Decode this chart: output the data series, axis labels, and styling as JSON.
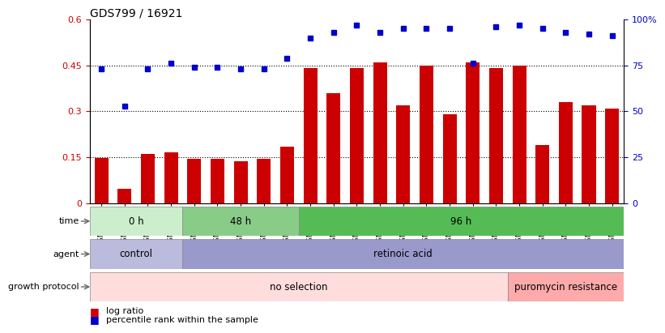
{
  "title": "GDS799 / 16921",
  "samples": [
    "GSM25978",
    "GSM25979",
    "GSM26006",
    "GSM26007",
    "GSM26008",
    "GSM26009",
    "GSM26010",
    "GSM26011",
    "GSM26012",
    "GSM26013",
    "GSM26014",
    "GSM26015",
    "GSM26016",
    "GSM26017",
    "GSM26018",
    "GSM26019",
    "GSM26020",
    "GSM26021",
    "GSM26022",
    "GSM26023",
    "GSM26024",
    "GSM26025",
    "GSM26026"
  ],
  "log_ratio": [
    0.148,
    0.048,
    0.16,
    0.165,
    0.145,
    0.145,
    0.138,
    0.145,
    0.185,
    0.44,
    0.36,
    0.44,
    0.46,
    0.32,
    0.45,
    0.29,
    0.46,
    0.44,
    0.45,
    0.19,
    0.33,
    0.32,
    0.31
  ],
  "percentile_pct": [
    73,
    53,
    73,
    76,
    74,
    74,
    73,
    73,
    79,
    90,
    93,
    97,
    93,
    95,
    95,
    95,
    76,
    96,
    97,
    95,
    93,
    92,
    91
  ],
  "bar_color": "#cc0000",
  "dot_color": "#0000cc",
  "left_ylim": [
    0,
    0.6
  ],
  "right_ylim": [
    0,
    100
  ],
  "left_yticks": [
    0,
    0.15,
    0.3,
    0.45,
    0.6
  ],
  "right_yticks": [
    0,
    25,
    50,
    75,
    100
  ],
  "hlines": [
    0.15,
    0.3,
    0.45
  ],
  "time_groups": [
    {
      "label": "0 h",
      "start": 0,
      "end": 4,
      "color": "#cceecc"
    },
    {
      "label": "48 h",
      "start": 4,
      "end": 9,
      "color": "#88cc88"
    },
    {
      "label": "96 h",
      "start": 9,
      "end": 23,
      "color": "#55bb55"
    }
  ],
  "agent_groups": [
    {
      "label": "control",
      "start": 0,
      "end": 4,
      "color": "#bbbbdd"
    },
    {
      "label": "retinoic acid",
      "start": 4,
      "end": 23,
      "color": "#9999cc"
    }
  ],
  "growth_groups": [
    {
      "label": "no selection",
      "start": 0,
      "end": 18,
      "color": "#ffdddd"
    },
    {
      "label": "puromycin resistance",
      "start": 18,
      "end": 23,
      "color": "#ffaaaa"
    }
  ],
  "row_labels": [
    "time",
    "agent",
    "growth protocol"
  ],
  "legend_bar_label": "log ratio",
  "legend_dot_label": "percentile rank within the sample",
  "bg_color": "#ffffff"
}
